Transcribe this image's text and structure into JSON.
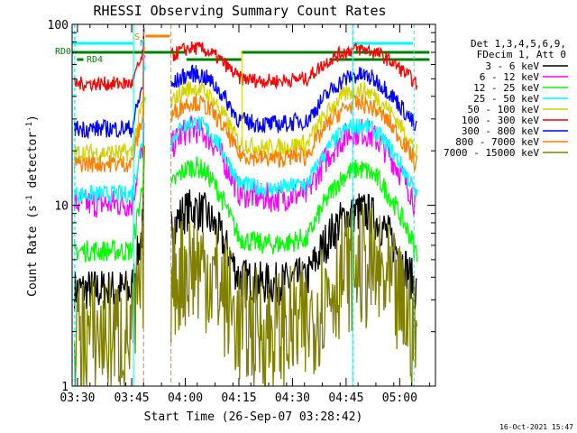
{
  "chart_data": {
    "type": "line",
    "title": "RHESSI Observing Summary Count Rates",
    "xlabel": "Start Time (26-Sep-07 03:28:42)",
    "ylabel_main": "Count Rate (s",
    "ylabel_sup1": "-1",
    "ylabel_mid": " detector",
    "ylabel_sup2": "-1",
    "ylabel_end": ")",
    "x_ticks": [
      {
        "label": "03:30",
        "min": 90
      },
      {
        "label": "03:45",
        "min": 1000
      },
      {
        "label": "04:00",
        "min": 1900
      },
      {
        "label": "04:15",
        "min": 2800
      },
      {
        "label": "04:30",
        "min": 3700
      },
      {
        "label": "04:45",
        "min": 4600
      },
      {
        "label": "05:00",
        "min": 5500
      }
    ],
    "xlim": [
      0,
      6100
    ],
    "ylim": [
      1,
      100
    ],
    "yscale": "log",
    "y_tick_labels": [
      "1",
      "10",
      "100"
    ],
    "y_tick_values": [
      1,
      10,
      100
    ],
    "legend_header": [
      "Det 1,3,4,5,6,9,",
      "FDecim 1, Att 0"
    ],
    "legend_position": "right",
    "series": [
      {
        "name": "3 - 6 keV",
        "color": "#000000"
      },
      {
        "name": "6 - 12 keV",
        "color": "#ff00ff"
      },
      {
        "name": "12 - 25 keV",
        "color": "#00ff00"
      },
      {
        "name": "25 - 50 keV",
        "color": "#00ffff"
      },
      {
        "name": "50 - 100 keV",
        "color": "#d4d400"
      },
      {
        "name": "100 - 300 keV",
        "color": "#ff0000"
      },
      {
        "name": "300 - 800 keV",
        "color": "#0000ff"
      },
      {
        "name": "800 - 7000 keV",
        "color": "#ff8000"
      },
      {
        "name": "7000 - 15000 keV",
        "color": "#808000"
      }
    ],
    "flags": {
      "labels": [
        "RD0",
        "RD4",
        "S",
        "N"
      ],
      "rd0_color": "#008000",
      "rd4_color": "#008000",
      "saa_color": "#ff8000",
      "night_color": "#00ffff"
    },
    "timestamp": "16-Oct-2021 15:47"
  }
}
